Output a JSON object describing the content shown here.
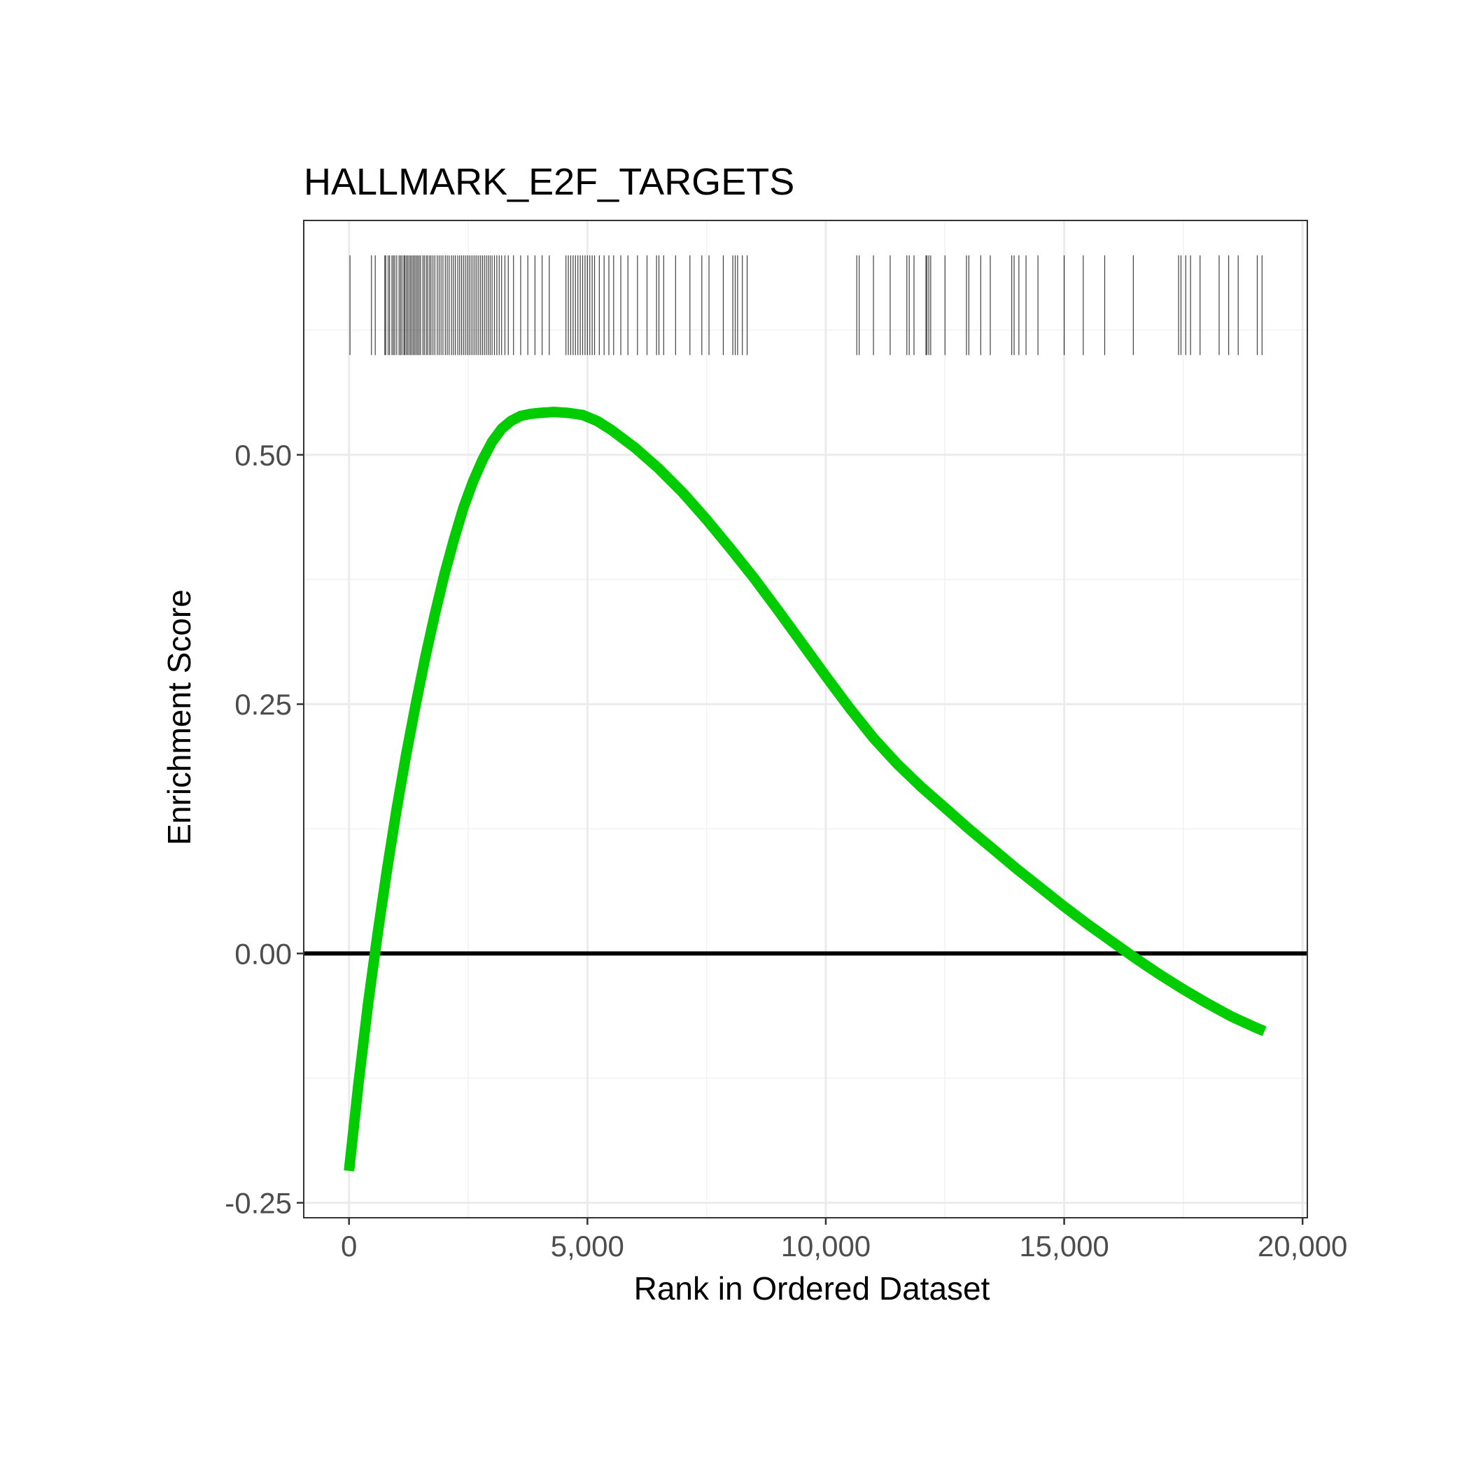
{
  "chart_data": {
    "type": "line",
    "title": "HALLMARK_E2F_TARGETS",
    "xlabel": "Rank in Ordered Dataset",
    "ylabel": "Enrichment Score",
    "xlim": [
      -950,
      20100
    ],
    "ylim": [
      -0.265,
      0.735
    ],
    "x_ticks": [
      0,
      5000,
      10000,
      15000,
      20000
    ],
    "x_tick_labels": [
      "0",
      "5,000",
      "10,000",
      "15,000",
      "20,000"
    ],
    "y_ticks": [
      -0.25,
      0,
      0.25,
      0.5
    ],
    "y_tick_labels": [
      "-0.25",
      "0.00",
      "0.25",
      "0.50"
    ],
    "x_minor_gridlines": [
      2500,
      7500,
      12500,
      17500
    ],
    "y_minor_gridlines": [
      -0.125,
      0.125,
      0.375,
      0.625
    ],
    "grid": true,
    "zero_line": 0,
    "series": [
      {
        "color": "#00cc00",
        "x": [
          0,
          200,
          400,
          600,
          800,
          1000,
          1200,
          1400,
          1600,
          1800,
          2000,
          2200,
          2400,
          2600,
          2800,
          3000,
          3200,
          3400,
          3600,
          3800,
          4000,
          4300,
          4600,
          4900,
          5200,
          5500,
          6000,
          6500,
          7000,
          7500,
          8000,
          8500,
          9000,
          9500,
          10000,
          10500,
          11000,
          11500,
          12000,
          12500,
          13000,
          13500,
          14000,
          14500,
          15000,
          15500,
          16000,
          16500,
          17000,
          17500,
          18000,
          18500,
          19000,
          19200
        ],
        "y": [
          -0.218,
          -0.13,
          -0.05,
          0.02,
          0.085,
          0.145,
          0.2,
          0.25,
          0.297,
          0.34,
          0.38,
          0.415,
          0.447,
          0.473,
          0.495,
          0.513,
          0.526,
          0.534,
          0.539,
          0.541,
          0.542,
          0.543,
          0.542,
          0.54,
          0.534,
          0.525,
          0.507,
          0.486,
          0.462,
          0.435,
          0.406,
          0.376,
          0.344,
          0.311,
          0.278,
          0.246,
          0.216,
          0.19,
          0.167,
          0.146,
          0.125,
          0.105,
          0.085,
          0.066,
          0.047,
          0.029,
          0.012,
          -0.005,
          -0.021,
          -0.036,
          -0.05,
          -0.063,
          -0.074,
          -0.078
        ]
      }
    ],
    "hit_positions": [
      20,
      470,
      550,
      750,
      770,
      820,
      850,
      900,
      930,
      960,
      1000,
      1050,
      1080,
      1110,
      1150,
      1170,
      1200,
      1230,
      1260,
      1290,
      1320,
      1350,
      1380,
      1410,
      1440,
      1470,
      1500,
      1550,
      1580,
      1620,
      1650,
      1690,
      1720,
      1760,
      1800,
      1850,
      1890,
      1930,
      1970,
      2020,
      2060,
      2100,
      2150,
      2190,
      2230,
      2280,
      2320,
      2360,
      2400,
      2440,
      2480,
      2520,
      2560,
      2600,
      2640,
      2680,
      2720,
      2760,
      2800,
      2840,
      2880,
      2920,
      2960,
      3000,
      3050,
      3100,
      3150,
      3200,
      3270,
      3340,
      3450,
      3600,
      3750,
      3900,
      4050,
      4200,
      4550,
      4600,
      4650,
      4700,
      4750,
      4800,
      4850,
      4900,
      4950,
      5000,
      5050,
      5100,
      5150,
      5250,
      5350,
      5450,
      5550,
      5700,
      5850,
      6050,
      6250,
      6450,
      6500,
      6600,
      6850,
      7150,
      7400,
      7550,
      7850,
      8050,
      8100,
      8150,
      8250,
      8350,
      10650,
      10700,
      11000,
      11350,
      11700,
      11750,
      11850,
      12100,
      12120,
      12160,
      12200,
      12500,
      12950,
      13000,
      13250,
      13450,
      13900,
      13950,
      14050,
      14200,
      14450,
      15000,
      15400,
      15850,
      16450,
      17400,
      17450,
      17550,
      17650,
      17850,
      18250,
      18450,
      18650,
      19050,
      19150
    ],
    "hit_ymin": 0.6,
    "hit_ymax": 0.7
  }
}
